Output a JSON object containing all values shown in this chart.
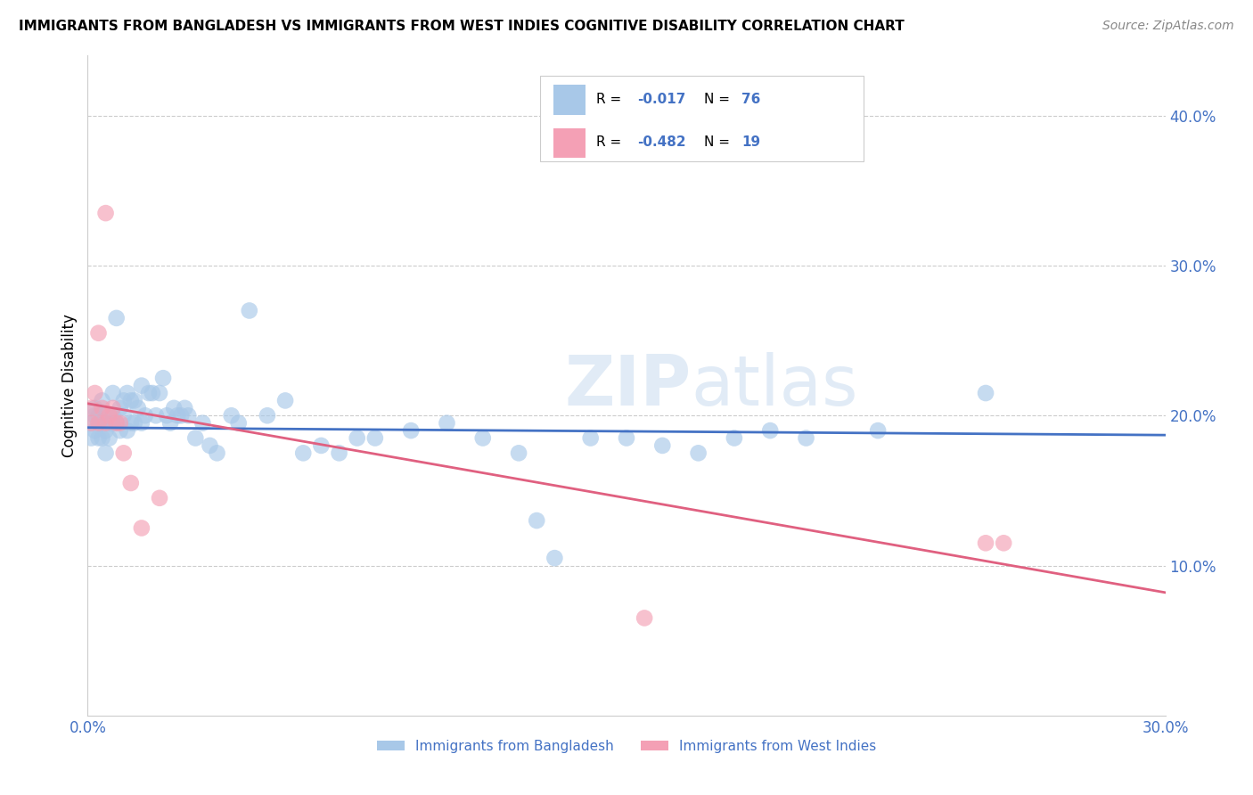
{
  "title": "IMMIGRANTS FROM BANGLADESH VS IMMIGRANTS FROM WEST INDIES COGNITIVE DISABILITY CORRELATION CHART",
  "source": "Source: ZipAtlas.com",
  "ylabel": "Cognitive Disability",
  "xlim": [
    0.0,
    0.3
  ],
  "ylim": [
    0.0,
    0.44
  ],
  "x_ticks": [
    0.0,
    0.05,
    0.1,
    0.15,
    0.2,
    0.25,
    0.3
  ],
  "x_tick_labels": [
    "0.0%",
    "",
    "",
    "",
    "",
    "",
    "30.0%"
  ],
  "y_ticks_right": [
    0.1,
    0.2,
    0.3,
    0.4
  ],
  "y_tick_labels_right": [
    "10.0%",
    "20.0%",
    "30.0%",
    "40.0%"
  ],
  "color_blue": "#a8c8e8",
  "color_pink": "#f4a0b5",
  "line_blue": "#4472c4",
  "line_pink": "#e06080",
  "text_color": "#4472c4",
  "grid_color": "#cccccc",
  "blue_line_y_start": 0.192,
  "blue_line_y_end": 0.187,
  "pink_line_y_start": 0.208,
  "pink_line_y_end": 0.082,
  "blue_scatter_x": [
    0.001,
    0.001,
    0.002,
    0.002,
    0.002,
    0.003,
    0.003,
    0.003,
    0.004,
    0.004,
    0.004,
    0.005,
    0.005,
    0.005,
    0.006,
    0.006,
    0.007,
    0.007,
    0.007,
    0.008,
    0.008,
    0.009,
    0.009,
    0.01,
    0.01,
    0.011,
    0.011,
    0.012,
    0.012,
    0.013,
    0.013,
    0.014,
    0.015,
    0.015,
    0.016,
    0.017,
    0.018,
    0.019,
    0.02,
    0.021,
    0.022,
    0.023,
    0.024,
    0.025,
    0.026,
    0.027,
    0.028,
    0.03,
    0.032,
    0.034,
    0.036,
    0.04,
    0.042,
    0.045,
    0.05,
    0.055,
    0.06,
    0.065,
    0.07,
    0.075,
    0.08,
    0.09,
    0.1,
    0.11,
    0.12,
    0.125,
    0.13,
    0.14,
    0.15,
    0.16,
    0.17,
    0.18,
    0.19,
    0.2,
    0.22,
    0.25
  ],
  "blue_scatter_y": [
    0.195,
    0.185,
    0.2,
    0.19,
    0.205,
    0.195,
    0.185,
    0.2,
    0.21,
    0.195,
    0.185,
    0.19,
    0.2,
    0.175,
    0.195,
    0.185,
    0.215,
    0.195,
    0.2,
    0.195,
    0.265,
    0.19,
    0.205,
    0.2,
    0.21,
    0.215,
    0.19,
    0.21,
    0.195,
    0.21,
    0.195,
    0.205,
    0.195,
    0.22,
    0.2,
    0.215,
    0.215,
    0.2,
    0.215,
    0.225,
    0.2,
    0.195,
    0.205,
    0.2,
    0.2,
    0.205,
    0.2,
    0.185,
    0.195,
    0.18,
    0.175,
    0.2,
    0.195,
    0.27,
    0.2,
    0.21,
    0.175,
    0.18,
    0.175,
    0.185,
    0.185,
    0.19,
    0.195,
    0.185,
    0.175,
    0.13,
    0.105,
    0.185,
    0.185,
    0.18,
    0.175,
    0.185,
    0.19,
    0.185,
    0.19,
    0.215
  ],
  "pink_scatter_x": [
    0.001,
    0.001,
    0.002,
    0.003,
    0.003,
    0.004,
    0.005,
    0.005,
    0.006,
    0.007,
    0.008,
    0.009,
    0.01,
    0.012,
    0.015,
    0.02,
    0.155,
    0.25,
    0.255
  ],
  "pink_scatter_y": [
    0.205,
    0.195,
    0.215,
    0.255,
    0.195,
    0.205,
    0.195,
    0.335,
    0.2,
    0.205,
    0.195,
    0.195,
    0.175,
    0.155,
    0.125,
    0.145,
    0.065,
    0.115,
    0.115
  ]
}
